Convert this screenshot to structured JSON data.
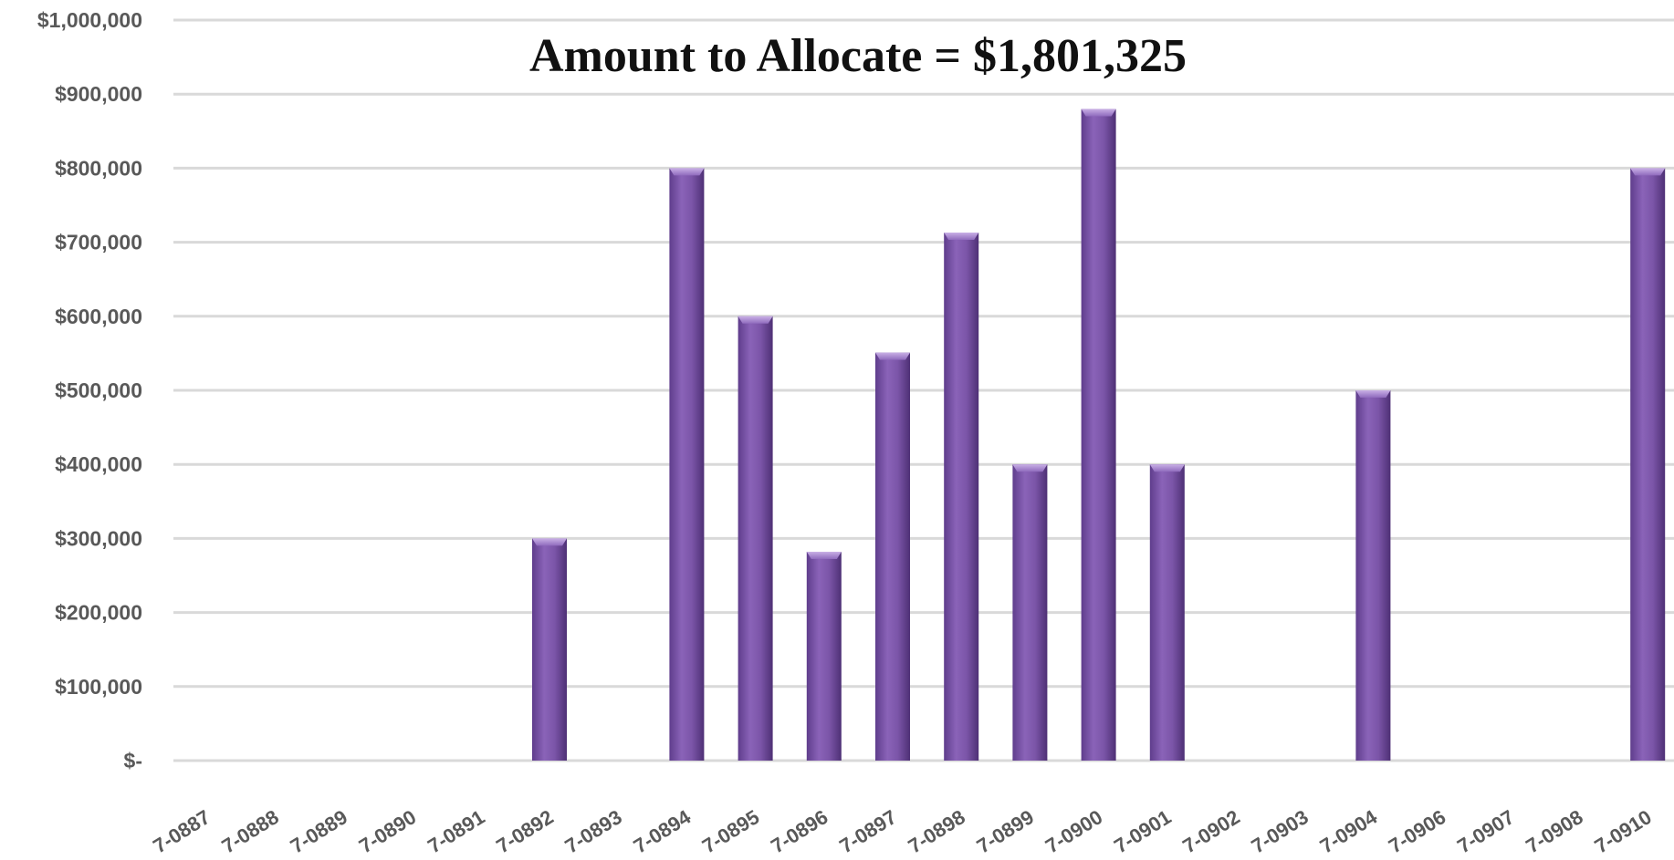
{
  "chart_data": {
    "type": "bar",
    "title": "Amount to Allocate = $1,801,325",
    "xlabel": "",
    "ylabel": "",
    "ylim": [
      0,
      1000000
    ],
    "y_ticks": [
      {
        "value": 0,
        "label": "$-"
      },
      {
        "value": 100000,
        "label": "$100,000"
      },
      {
        "value": 200000,
        "label": "$200,000"
      },
      {
        "value": 300000,
        "label": "$300,000"
      },
      {
        "value": 400000,
        "label": "$400,000"
      },
      {
        "value": 500000,
        "label": "$500,000"
      },
      {
        "value": 600000,
        "label": "$600,000"
      },
      {
        "value": 700000,
        "label": "$700,000"
      },
      {
        "value": 800000,
        "label": "$800,000"
      },
      {
        "value": 900000,
        "label": "$900,000"
      },
      {
        "value": 1000000,
        "label": "$1,000,000"
      }
    ],
    "grid": true,
    "legend": "none",
    "bar_color": "#7B55A8",
    "categories": [
      "7-0887",
      "7-0888",
      "7-0889",
      "7-0890",
      "7-0891",
      "7-0892",
      "7-0893",
      "7-0894",
      "7-0895",
      "7-0896",
      "7-0897",
      "7-0898",
      "7-0899",
      "7-0900",
      "7-0901",
      "7-0902",
      "7-0903",
      "7-0904",
      "7-0906",
      "7-0907",
      "7-0908",
      "7-0910"
    ],
    "values": [
      0,
      0,
      0,
      0,
      0,
      300000,
      0,
      800000,
      600000,
      282000,
      551000,
      713000,
      400000,
      880000,
      400000,
      0,
      0,
      500000,
      0,
      0,
      0,
      800000
    ]
  }
}
